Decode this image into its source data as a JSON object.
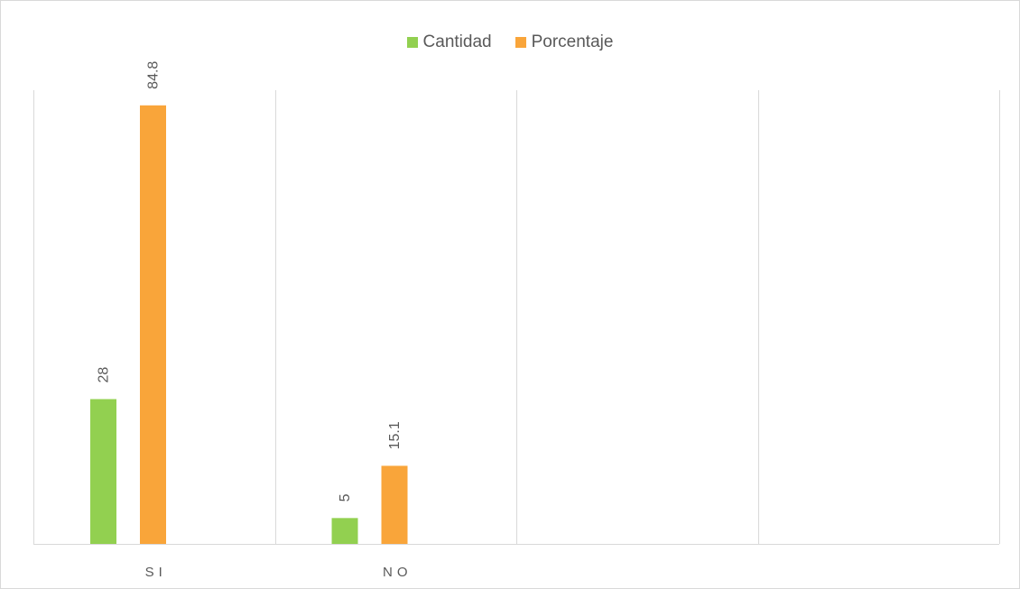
{
  "chart_data": {
    "type": "bar",
    "categories": [
      "SI",
      "NO",
      "",
      ""
    ],
    "series": [
      {
        "name": "Cantidad",
        "values": [
          28,
          5,
          null,
          null
        ],
        "color": "#92d050"
      },
      {
        "name": "Porcentaje",
        "values": [
          84.8,
          15.1,
          null,
          null
        ],
        "color": "#f9a53a"
      }
    ],
    "data_labels": [
      [
        "28",
        "5"
      ],
      [
        "84.8",
        "15.1"
      ]
    ],
    "title": "",
    "xlabel": "",
    "ylabel": "",
    "ylim": [
      0,
      90
    ],
    "grid": "vertical",
    "legend_position": "top-center",
    "axis_color": "#d9d9d9",
    "label_color": "#595959"
  }
}
